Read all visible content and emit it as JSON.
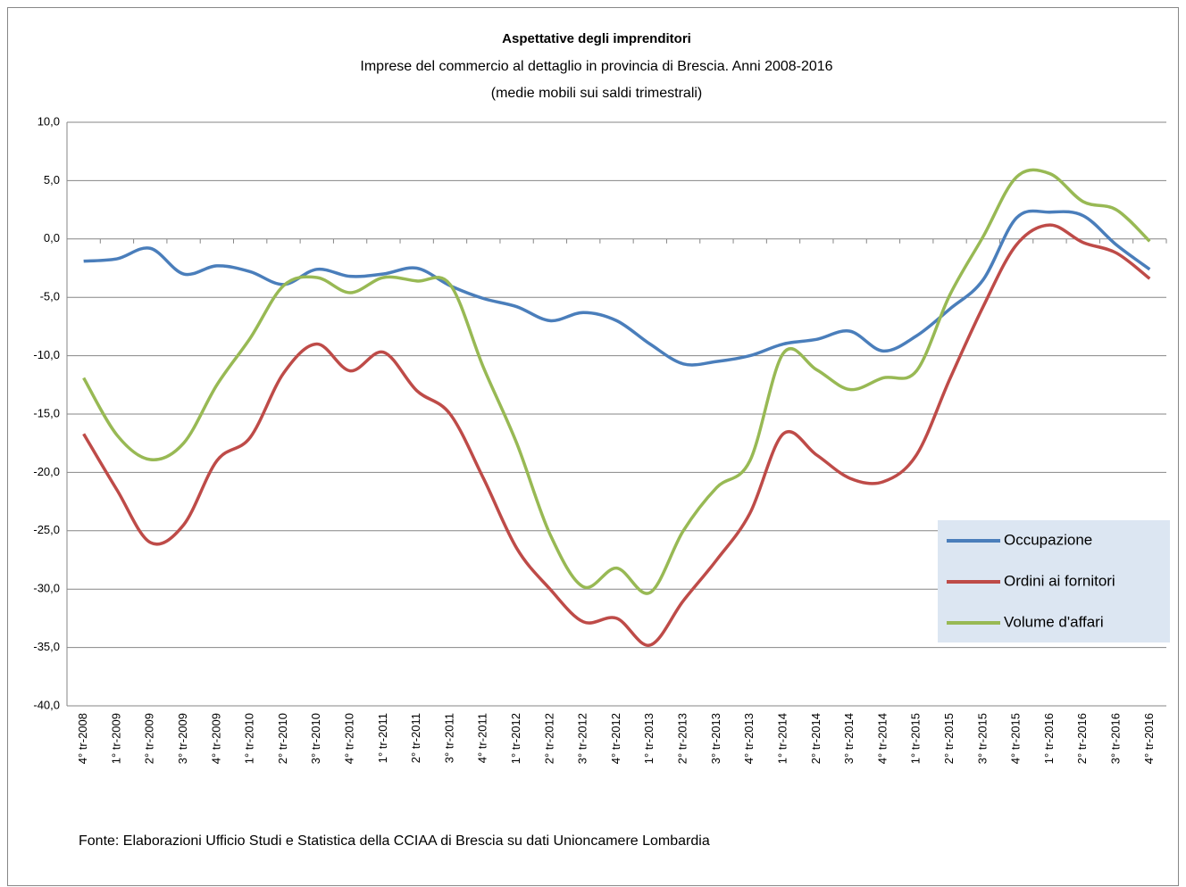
{
  "chart_data": {
    "type": "line",
    "title": "Aspettative degli imprenditori",
    "subtitle": "Imprese del  commercio al dettaglio in provincia di Brescia. Anni 2008-2016",
    "subtitle2": "(medie mobili sui saldi  trimestrali)",
    "note": "Fonte: Elaborazioni  Ufficio Studi e Statistica della CCIAA di Brescia su dati Unioncamere Lombardia",
    "categories": [
      "4° tr-2008",
      "1° tr-2009",
      "2° tr-2009",
      "3° tr-2009",
      "4° tr-2009",
      "1° tr-2010",
      "2° tr-2010",
      "3° tr-2010",
      "4° tr-2010",
      "1° tr-2011",
      "2° tr-2011",
      "3° tr-2011",
      "4° tr-2011",
      "1° tr-2012",
      "2° tr-2012",
      "3° tr-2012",
      "4° tr-2012",
      "1° tr-2013",
      "2° tr-2013",
      "3° tr-2013",
      "4° tr-2013",
      "1° tr-2014",
      "2° tr-2014",
      "3° tr-2014",
      "4° tr-2014",
      "1° tr-2015",
      "2° tr-2015",
      "3° tr-2015",
      "4° tr-2015",
      "1° tr-2016",
      "2° tr-2016",
      "3° tr-2016",
      "4° tr-2016"
    ],
    "series": [
      {
        "name": "Occupazione",
        "color": "#4a7ebb",
        "values": [
          -1.9,
          -1.7,
          -0.8,
          -3.0,
          -2.3,
          -2.8,
          -3.9,
          -2.6,
          -3.2,
          -3.0,
          -2.5,
          -4.0,
          -5.1,
          -5.8,
          -7.0,
          -6.3,
          -7.0,
          -9.0,
          -10.7,
          -10.5,
          -10.0,
          -9.0,
          -8.6,
          -7.9,
          -9.6,
          -8.3,
          -6.0,
          -3.5,
          1.8,
          2.3,
          2.0,
          -0.5,
          -2.6
        ]
      },
      {
        "name": "Ordini ai fornitori",
        "color": "#be4b48",
        "values": [
          -16.7,
          -21.5,
          -26.0,
          -24.5,
          -19.0,
          -17.0,
          -11.5,
          -9.0,
          -11.3,
          -9.7,
          -13.0,
          -15.0,
          -20.5,
          -26.5,
          -30.0,
          -32.8,
          -32.5,
          -34.8,
          -31.0,
          -27.5,
          -23.5,
          -16.7,
          -18.5,
          -20.5,
          -20.8,
          -18.5,
          -12.0,
          -5.8,
          -0.5,
          1.2,
          -0.3,
          -1.2,
          -3.4
        ]
      },
      {
        "name": "Volume d'affari",
        "color": "#98b954",
        "values": [
          -11.9,
          -16.8,
          -18.9,
          -17.5,
          -12.5,
          -8.5,
          -4.0,
          -3.3,
          -4.6,
          -3.3,
          -3.6,
          -3.9,
          -11.0,
          -17.5,
          -25.3,
          -29.8,
          -28.2,
          -30.3,
          -25.0,
          -21.3,
          -19.0,
          -9.8,
          -11.2,
          -12.9,
          -11.9,
          -11.3,
          -4.8,
          0.2,
          5.3,
          5.6,
          3.2,
          2.5,
          -0.2
        ]
      }
    ],
    "ylim": [
      -40,
      10
    ],
    "yticks": [
      {
        "value": -40,
        "label": "-40,0"
      },
      {
        "value": -35,
        "label": "-35,0"
      },
      {
        "value": -30,
        "label": "-30,0"
      },
      {
        "value": -25,
        "label": "-25,0"
      },
      {
        "value": -20,
        "label": "-20,0"
      },
      {
        "value": -15,
        "label": "-15,0"
      },
      {
        "value": -10,
        "label": "-10,0"
      },
      {
        "value": -5,
        "label": "-5,0"
      },
      {
        "value": 0,
        "label": "0,0"
      },
      {
        "value": 5,
        "label": "5,0"
      },
      {
        "value": 10,
        "label": "10,0"
      }
    ],
    "grid": true,
    "legend": "lower right"
  }
}
